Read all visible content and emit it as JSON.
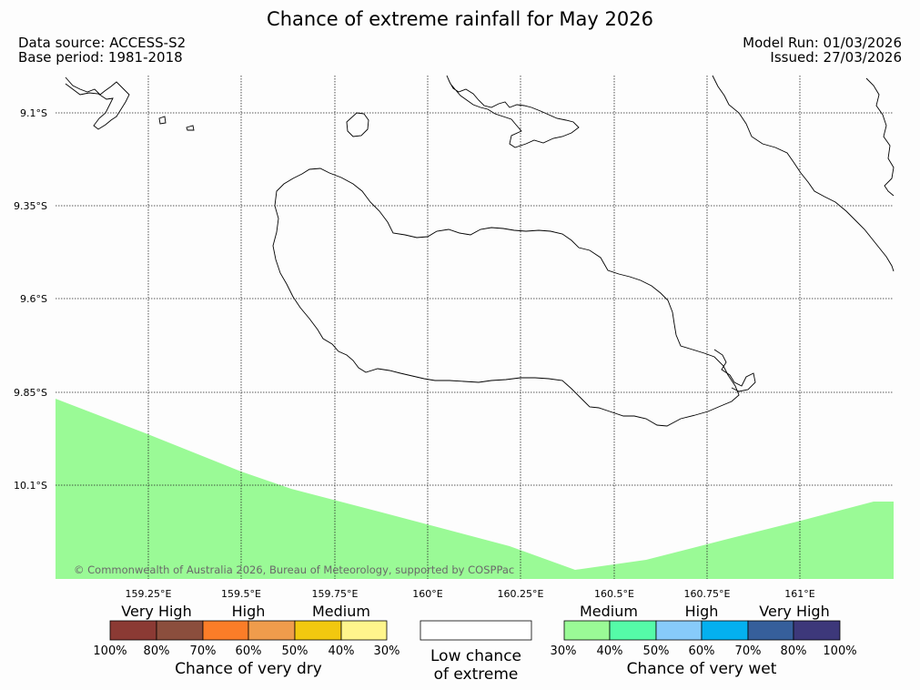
{
  "title": "Chance of extreme rainfall for May 2026",
  "meta": {
    "data_source": "Data source: ACCESS-S2",
    "base_period": "Base period: 1981-2018",
    "model_run": "Model Run: 01/03/2026",
    "issued": "Issued: 27/03/2026"
  },
  "map": {
    "lat_labels": [
      "9.1°S",
      "9.35°S",
      "9.6°S",
      "9.85°S",
      "10.1°S"
    ],
    "lon_labels": [
      "159.25°E",
      "159.5°E",
      "159.75°E",
      "160°E",
      "160.25°E",
      "160.5°E",
      "160.75°E",
      "161°E"
    ],
    "copyright": "© Commonwealth of Australia 2026, Bureau of Meteorology, supported by COSPPac",
    "medium_wet_color": "#9afa96"
  },
  "legend": {
    "dry": {
      "captions": [
        "Very High",
        "High",
        "Medium"
      ],
      "colors": [
        "#8b3a34",
        "#8b4e3d",
        "#fb7d28",
        "#ef9c4c",
        "#f2c80f",
        "#fff58c"
      ],
      "ticks": [
        "100%",
        "80%",
        "70%",
        "60%",
        "50%",
        "40%",
        "30%"
      ],
      "title": "Chance of very dry"
    },
    "low": {
      "line1": "Low chance",
      "line2": "of extreme"
    },
    "wet": {
      "captions": [
        "Medium",
        "High",
        "Very High"
      ],
      "colors": [
        "#9afa96",
        "#55fba8",
        "#87cbfa",
        "#04b0ef",
        "#365f9b",
        "#3d387a"
      ],
      "ticks": [
        "30%",
        "40%",
        "50%",
        "60%",
        "70%",
        "80%",
        "100%"
      ],
      "title": "Chance of very wet"
    }
  }
}
